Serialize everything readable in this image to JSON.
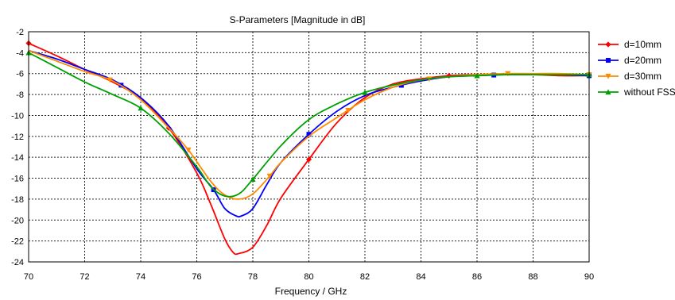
{
  "chart_data": {
    "type": "line",
    "title": "S-Parameters [Magnitude in dB]",
    "xlabel": "Frequency / GHz",
    "ylabel": "",
    "xlim": [
      70,
      90
    ],
    "ylim": [
      -24,
      -2
    ],
    "xticks": [
      70,
      72,
      74,
      76,
      78,
      80,
      82,
      84,
      86,
      88,
      90
    ],
    "yticks": [
      -2,
      -4,
      -6,
      -8,
      -10,
      -12,
      -14,
      -16,
      -18,
      -20,
      -22,
      -24
    ],
    "grid": true,
    "legend_position": "right",
    "series": [
      {
        "name": "d=10mm",
        "color": "#ff0000",
        "marker": "diamond",
        "x": [
          70,
          71,
          72,
          73,
          74,
          75,
          76,
          76.5,
          77,
          77.3,
          77.5,
          78,
          78.5,
          79,
          80,
          81,
          82,
          83,
          84,
          85,
          86,
          87,
          88,
          89,
          90
        ],
        "y": [
          -3.1,
          -4.3,
          -5.6,
          -6.8,
          -8.4,
          -11.2,
          -15.5,
          -18.5,
          -21.8,
          -23.1,
          -23.2,
          -22.6,
          -20.5,
          -17.9,
          -14.2,
          -10.7,
          -8.3,
          -7.0,
          -6.5,
          -6.2,
          -6.1,
          -6.1,
          -6.1,
          -6.2,
          -6.2
        ],
        "marker_x": [
          70,
          75,
          80,
          85,
          90
        ]
      },
      {
        "name": "d=20mm",
        "color": "#0000ff",
        "marker": "square",
        "x": [
          70,
          71,
          72,
          73,
          74,
          75,
          76,
          76.6,
          77,
          77.4,
          77.6,
          78,
          78.5,
          79,
          80,
          81,
          82,
          83,
          84,
          85,
          86,
          87,
          88,
          89,
          90
        ],
        "y": [
          -3.8,
          -4.6,
          -5.6,
          -6.6,
          -8.3,
          -11.0,
          -15.1,
          -17.1,
          -18.9,
          -19.6,
          -19.6,
          -18.9,
          -16.6,
          -14.5,
          -11.8,
          -9.6,
          -8.1,
          -7.3,
          -6.7,
          -6.3,
          -6.2,
          -6.1,
          -6.1,
          -6.1,
          -6.2
        ],
        "marker_x": [
          73.3,
          76.6,
          80,
          83.3,
          86.6,
          90
        ]
      },
      {
        "name": "d=30mm",
        "color": "#ff8c00",
        "marker": "triangle-down",
        "x": [
          70,
          71,
          72,
          73,
          74,
          75,
          75.7,
          76.5,
          77,
          77.5,
          78,
          78.6,
          79,
          80,
          81,
          82,
          83,
          84,
          85,
          86,
          87,
          88,
          89,
          90
        ],
        "y": [
          -3.8,
          -4.8,
          -5.8,
          -6.7,
          -8.5,
          -11.2,
          -13.3,
          -16.3,
          -17.6,
          -18.0,
          -17.5,
          -15.8,
          -14.5,
          -12.0,
          -10.2,
          -8.5,
          -7.3,
          -6.6,
          -6.3,
          -6.1,
          -6.0,
          -6.0,
          -6.0,
          -6.1
        ],
        "marker_x": [
          72.9,
          75.7,
          78.6,
          81.4,
          84.3,
          87.1,
          90
        ]
      },
      {
        "name": "without FSS",
        "color": "#00a000",
        "marker": "triangle-up",
        "x": [
          70,
          71,
          72,
          73,
          74,
          75,
          76,
          76.5,
          77,
          77.5,
          78,
          79,
          80,
          81,
          82,
          83,
          84,
          85,
          86,
          87,
          88,
          89,
          90
        ],
        "y": [
          -4.0,
          -5.4,
          -6.8,
          -8.0,
          -9.3,
          -11.7,
          -14.9,
          -16.8,
          -17.7,
          -17.5,
          -16.1,
          -12.9,
          -10.4,
          -8.9,
          -7.8,
          -7.1,
          -6.6,
          -6.3,
          -6.2,
          -6.1,
          -6.1,
          -6.1,
          -6.1
        ],
        "marker_x": [
          70,
          74,
          78,
          82,
          86,
          90
        ]
      }
    ]
  }
}
